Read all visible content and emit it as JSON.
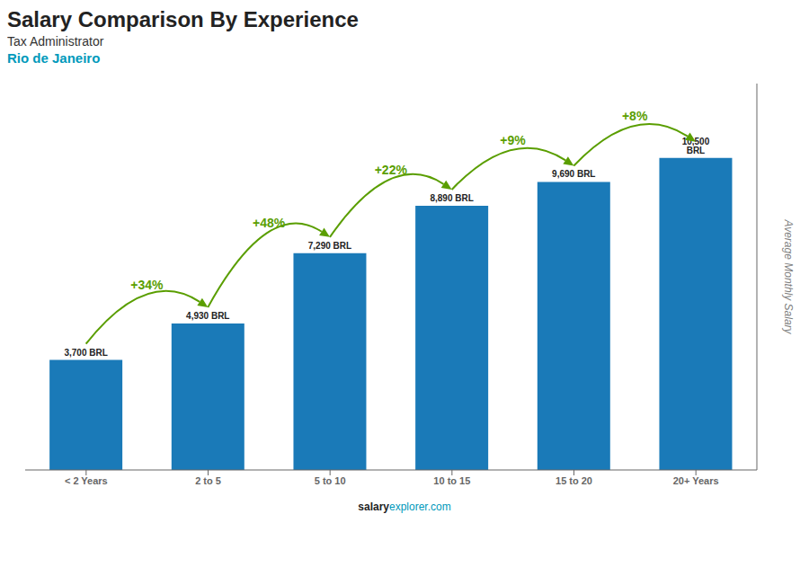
{
  "chart_data": {
    "type": "bar",
    "title": "Salary Comparison By Experience",
    "subtitle": "Tax Administrator",
    "ylabel": "Average Monthly Salary",
    "annotations": {
      "location": "Rio de Janeiro",
      "footer": [
        "salary",
        "explorer.com"
      ],
      "changes": [
        "+34%",
        "+48%",
        "+22%",
        "+9%",
        "+8%"
      ]
    },
    "categories": [
      "< 2 Years",
      "2 to 5",
      "5 to 10",
      "10 to 15",
      "15 to 20",
      "20+ Years"
    ],
    "values": [
      3700,
      4930,
      7290,
      8890,
      9690,
      10500
    ],
    "value_labels": [
      "3,700 BRL",
      "4,930 BRL",
      "7,290 BRL",
      "8,890 BRL",
      "9,690 BRL",
      "10,500 BRL"
    ],
    "data_labels": true,
    "color": "#1a7ab8",
    "ylim": [
      0,
      13000
    ],
    "tick_labels": "x",
    "grid": false
  }
}
